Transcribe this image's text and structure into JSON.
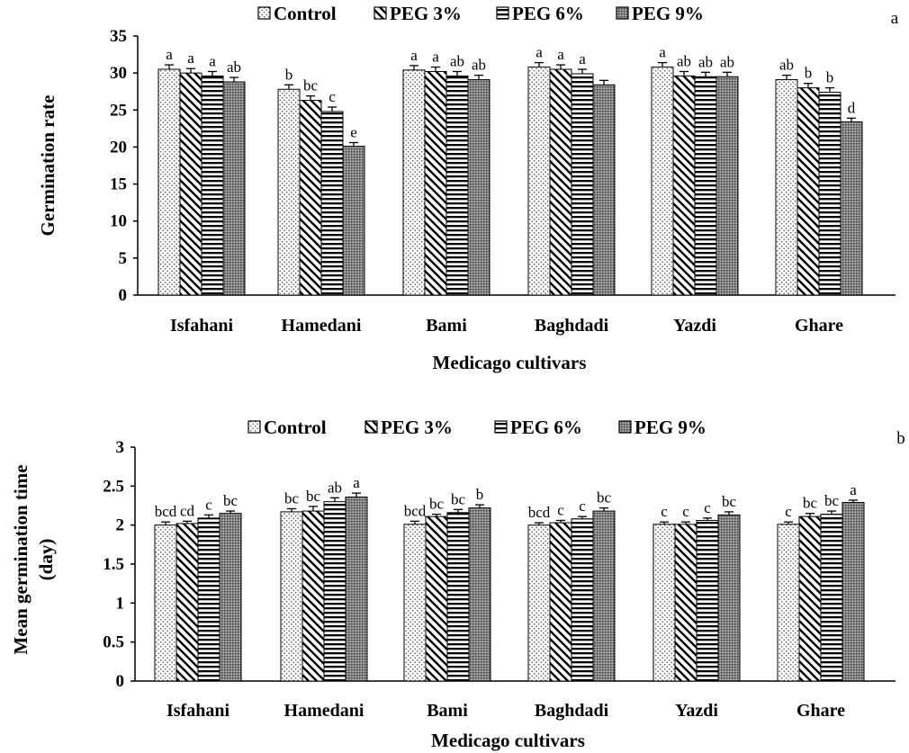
{
  "chart_data": [
    {
      "type": "bar",
      "panel_letter": "a",
      "categories": [
        "Isfahani",
        "Hamedani",
        "Bami",
        "Baghdadi",
        "Yazdi",
        "Ghare"
      ],
      "series": [
        {
          "name": "Control",
          "values": [
            30.5,
            27.8,
            30.4,
            30.8,
            30.8,
            29.1
          ],
          "errors": [
            0.6,
            0.6,
            0.6,
            0.6,
            0.6,
            0.6
          ],
          "sig": [
            "a",
            "b",
            "a",
            "a",
            "a",
            "ab"
          ]
        },
        {
          "name": "PEG 3%",
          "values": [
            30.0,
            26.3,
            30.2,
            30.5,
            29.6,
            28.0
          ],
          "errors": [
            0.6,
            0.6,
            0.6,
            0.6,
            0.6,
            0.6
          ],
          "sig": [
            "a",
            "bc",
            "a",
            "a",
            "ab",
            "b"
          ]
        },
        {
          "name": "PEG 6%",
          "values": [
            29.6,
            24.8,
            29.6,
            29.9,
            29.5,
            27.4
          ],
          "errors": [
            0.6,
            0.6,
            0.6,
            0.6,
            0.6,
            0.6
          ],
          "sig": [
            "a",
            "c",
            "ab",
            "a",
            "ab",
            "b"
          ]
        },
        {
          "name": "PEG 9%",
          "values": [
            28.8,
            20.1,
            29.1,
            28.4,
            29.5,
            23.4
          ],
          "errors": [
            0.6,
            0.5,
            0.6,
            0.6,
            0.6,
            0.5
          ],
          "sig": [
            "ab",
            "e",
            "ab",
            "",
            "ab",
            "d"
          ]
        }
      ],
      "xlabel": "Medicago cultivars",
      "ylabel": "Germination rate",
      "ylim": [
        0,
        35
      ],
      "yticks": [
        "0",
        "5",
        "10",
        "15",
        "20",
        "25",
        "30",
        "35"
      ],
      "grid": false,
      "legend_position": "top"
    },
    {
      "type": "bar",
      "panel_letter": "b",
      "categories": [
        "Isfahani",
        "Hamedani",
        "Bami",
        "Baghdadi",
        "Yazdi",
        "Ghare"
      ],
      "series": [
        {
          "name": "Control",
          "values": [
            2.0,
            2.17,
            2.01,
            2.0,
            2.01,
            2.01
          ],
          "errors": [
            0.04,
            0.04,
            0.04,
            0.03,
            0.03,
            0.03
          ],
          "sig": [
            "bcd",
            "bc",
            "bcd",
            "bcd",
            "c",
            "c"
          ]
        },
        {
          "name": "PEG 3%",
          "values": [
            2.02,
            2.18,
            2.11,
            2.03,
            2.01,
            2.11
          ],
          "errors": [
            0.03,
            0.06,
            0.03,
            0.03,
            0.03,
            0.04
          ],
          "sig": [
            "cd",
            "bc",
            "bc",
            "c",
            "c",
            "bc"
          ]
        },
        {
          "name": "PEG 6%",
          "values": [
            2.09,
            2.3,
            2.16,
            2.08,
            2.06,
            2.14
          ],
          "errors": [
            0.04,
            0.05,
            0.04,
            0.03,
            0.03,
            0.04
          ],
          "sig": [
            "c",
            "ab",
            "bc",
            "c",
            "c",
            "bc"
          ]
        },
        {
          "name": "PEG 9%",
          "values": [
            2.15,
            2.36,
            2.22,
            2.18,
            2.13,
            2.29
          ],
          "errors": [
            0.03,
            0.05,
            0.04,
            0.04,
            0.04,
            0.03
          ],
          "sig": [
            "bc",
            "a",
            "b",
            "bc",
            "bc",
            "a"
          ]
        }
      ],
      "xlabel": "Medicago cultivars",
      "ylabel": "Mean germination time (day)",
      "ylim": [
        0,
        3
      ],
      "yticks": [
        "0",
        "0.5",
        "1",
        "1.5",
        "2",
        "2.5",
        "3"
      ],
      "grid": false,
      "legend_position": "top"
    }
  ]
}
